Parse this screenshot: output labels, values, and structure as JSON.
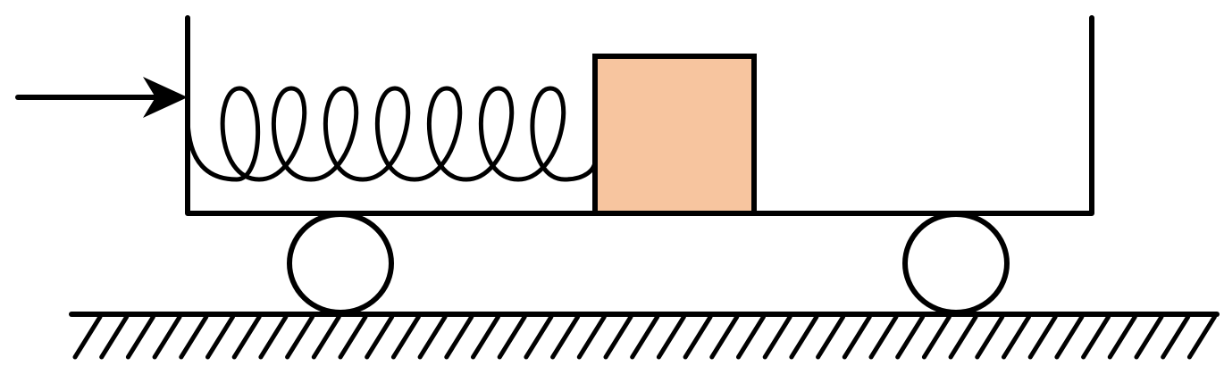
{
  "diagram": {
    "colors": {
      "line": "#000000",
      "block_fill": "#F7C59F",
      "background": "#FFFFFF",
      "wheel_fill": "#FFFFFF"
    },
    "elements": {
      "arrow": "push-force-arrow",
      "cart": "cart-body",
      "spring": "coil-spring",
      "block": "block",
      "wheels": [
        "front-wheel",
        "rear-wheel"
      ],
      "ground": "ground-surface"
    },
    "spring_coils": 7
  }
}
